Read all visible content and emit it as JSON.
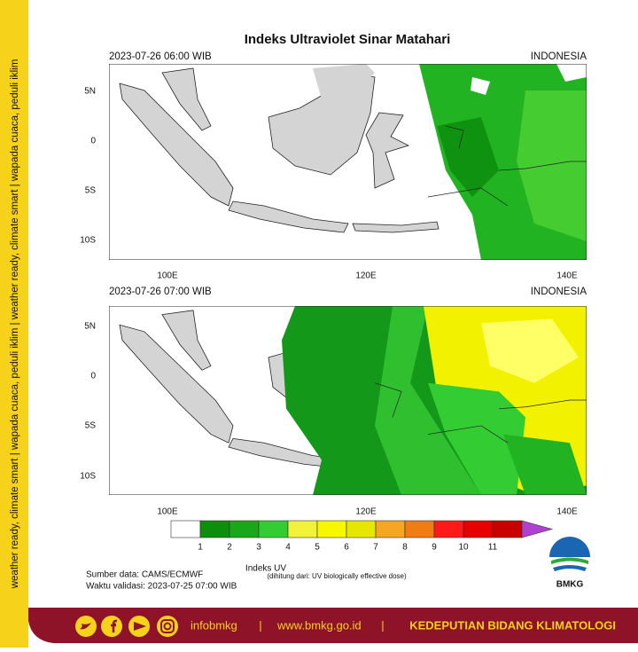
{
  "side_text": "weather ready, climate smart | wapada cuaca, peduli iklim | weather ready, climate smart | wapada cuaca, peduli iklim",
  "title": "Indeks Ultraviolet Sinar Matahari",
  "panels": [
    {
      "time": "2023-07-26  06:00 WIB",
      "region": "INDONESIA",
      "lat_labels": [
        "5N",
        "0",
        "5S",
        "10S"
      ],
      "lon_labels": [
        "100E",
        "120E",
        "140E"
      ]
    },
    {
      "time": "2023-07-26  07:00 WIB",
      "region": "INDONESIA",
      "lat_labels": [
        "5N",
        "0",
        "5S",
        "10S"
      ],
      "lon_labels": [
        "100E",
        "120E",
        "140E"
      ]
    }
  ],
  "colorbar": {
    "title": "Indeks UV",
    "note": "(dihitung dari: UV biologically effective dose)",
    "ticks": [
      1,
      2,
      3,
      4,
      5,
      6,
      7,
      8,
      9,
      10,
      11
    ],
    "colors": [
      "#ffffff",
      "#0d8f0d",
      "#1aa81a",
      "#33cc33",
      "#f2f23a",
      "#f7f700",
      "#e6e600",
      "#f5a623",
      "#f07d14",
      "#ff1a1a",
      "#e60000",
      "#c80000",
      "#b040d0"
    ]
  },
  "source": "Sumber data: CAMS/ECMWF",
  "validity": "Waktu validasi: 2023-07-25 07:00 WIB",
  "logo": "BMKG",
  "footer": {
    "handle": "infobmkg",
    "sep1": "|",
    "url": "www.bmkg.go.id",
    "sep2": "|",
    "department": "KEDEPUTIAN BIDANG KLIMATOLOGI"
  }
}
